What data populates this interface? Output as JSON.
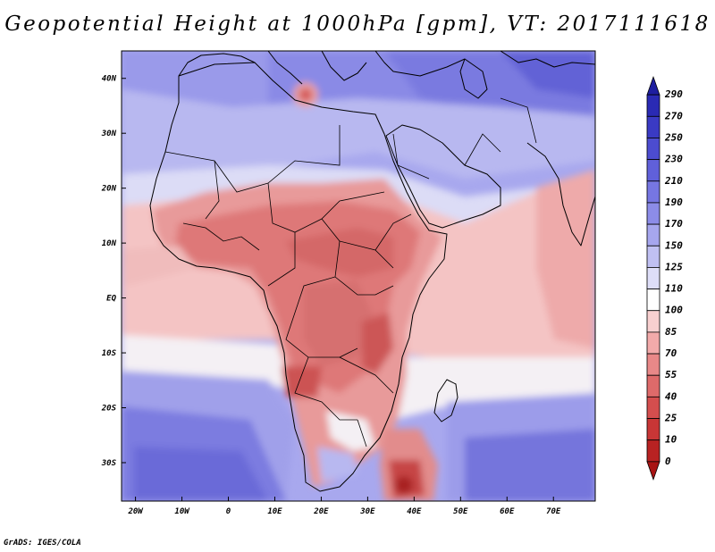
{
  "title": "Geopotential Height at 1000hPa [gpm], VT: 2017111618",
  "credit": "GrADS: IGES/COLA",
  "map": {
    "variable": "Geopotential Height",
    "level": "1000hPa",
    "units": "gpm",
    "valid_time": "2017111618",
    "lat_labels": [
      "40N",
      "30N",
      "20N",
      "10N",
      "EQ",
      "10S",
      "20S",
      "30S"
    ],
    "lat_values": [
      40,
      30,
      20,
      10,
      0,
      -10,
      -20,
      -30
    ],
    "lon_labels": [
      "20W",
      "10W",
      "0",
      "10E",
      "20E",
      "30E",
      "40E",
      "50E",
      "60E",
      "70E"
    ],
    "lon_values": [
      -20,
      -10,
      0,
      10,
      20,
      30,
      40,
      50,
      60,
      70
    ],
    "extent": {
      "lon_min": -23,
      "lon_max": 79,
      "lat_min": -37,
      "lat_max": 45
    }
  },
  "colorbar": {
    "labels": [
      "290",
      "270",
      "250",
      "230",
      "210",
      "190",
      "170",
      "150",
      "125",
      "110",
      "100",
      "85",
      "70",
      "55",
      "40",
      "25",
      "10",
      "0"
    ],
    "colors": [
      "#1e1ea0",
      "#2a2ab4",
      "#3a3ac4",
      "#4c4cd0",
      "#6060da",
      "#7676e2",
      "#8c8ce8",
      "#a6a6ee",
      "#c0c0f2",
      "#dedef8",
      "#ffffff",
      "#f8d0d0",
      "#f2aaaa",
      "#e88888",
      "#de6a6a",
      "#d44e4e",
      "#c83636",
      "#b82222",
      "#a81414"
    ]
  },
  "colors": {
    "ocean_blue": "#8080e0",
    "land_red": "#e68080",
    "white_band": "#f4f0f4"
  }
}
